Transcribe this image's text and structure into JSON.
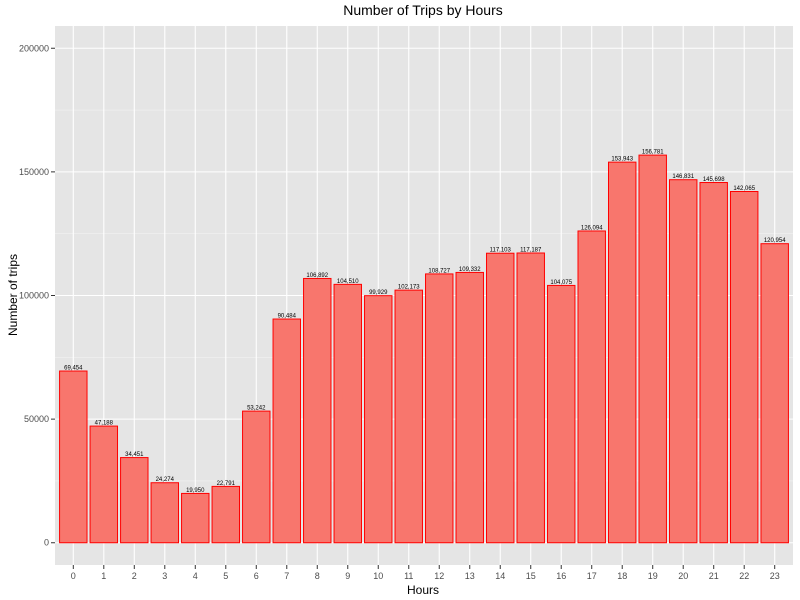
{
  "chart_data": {
    "type": "bar",
    "title": "Number of Trips by Hours",
    "xlabel": "Hours",
    "ylabel": "Number of trips",
    "categories": [
      "0",
      "1",
      "2",
      "3",
      "4",
      "5",
      "6",
      "7",
      "8",
      "9",
      "10",
      "11",
      "12",
      "13",
      "14",
      "15",
      "16",
      "17",
      "18",
      "19",
      "20",
      "21",
      "22",
      "23"
    ],
    "values": [
      69454,
      47188,
      34451,
      24274,
      19950,
      22791,
      53242,
      90484,
      106892,
      104510,
      99929,
      102173,
      108727,
      109332,
      117103,
      117187,
      104075,
      126094,
      153943,
      156781,
      146831,
      145698,
      142065,
      120954
    ],
    "data_labels": [
      "69,454",
      "47,188",
      "34,451",
      "24,274",
      "19,950",
      "22,791",
      "53,242",
      "90,484",
      "106,892",
      "104,510",
      "99,929",
      "102,173",
      "108,727",
      "109,332",
      "117,103",
      "117,187",
      "104,075",
      "126,094",
      "153,943",
      "156,781",
      "146,831",
      "145,698",
      "142,065",
      "120,954"
    ],
    "ylim": [
      -9000,
      209000
    ],
    "yticks": [
      0,
      50000,
      100000,
      150000,
      200000
    ],
    "ytick_labels": [
      "0",
      "50000",
      "100000",
      "150000",
      "200000"
    ],
    "grid": true,
    "colors": {
      "panel_bg": "#e5e5e5",
      "grid_major": "#ffffff",
      "bar_fill": "#f8766d",
      "bar_stroke": "#ff0000"
    }
  }
}
